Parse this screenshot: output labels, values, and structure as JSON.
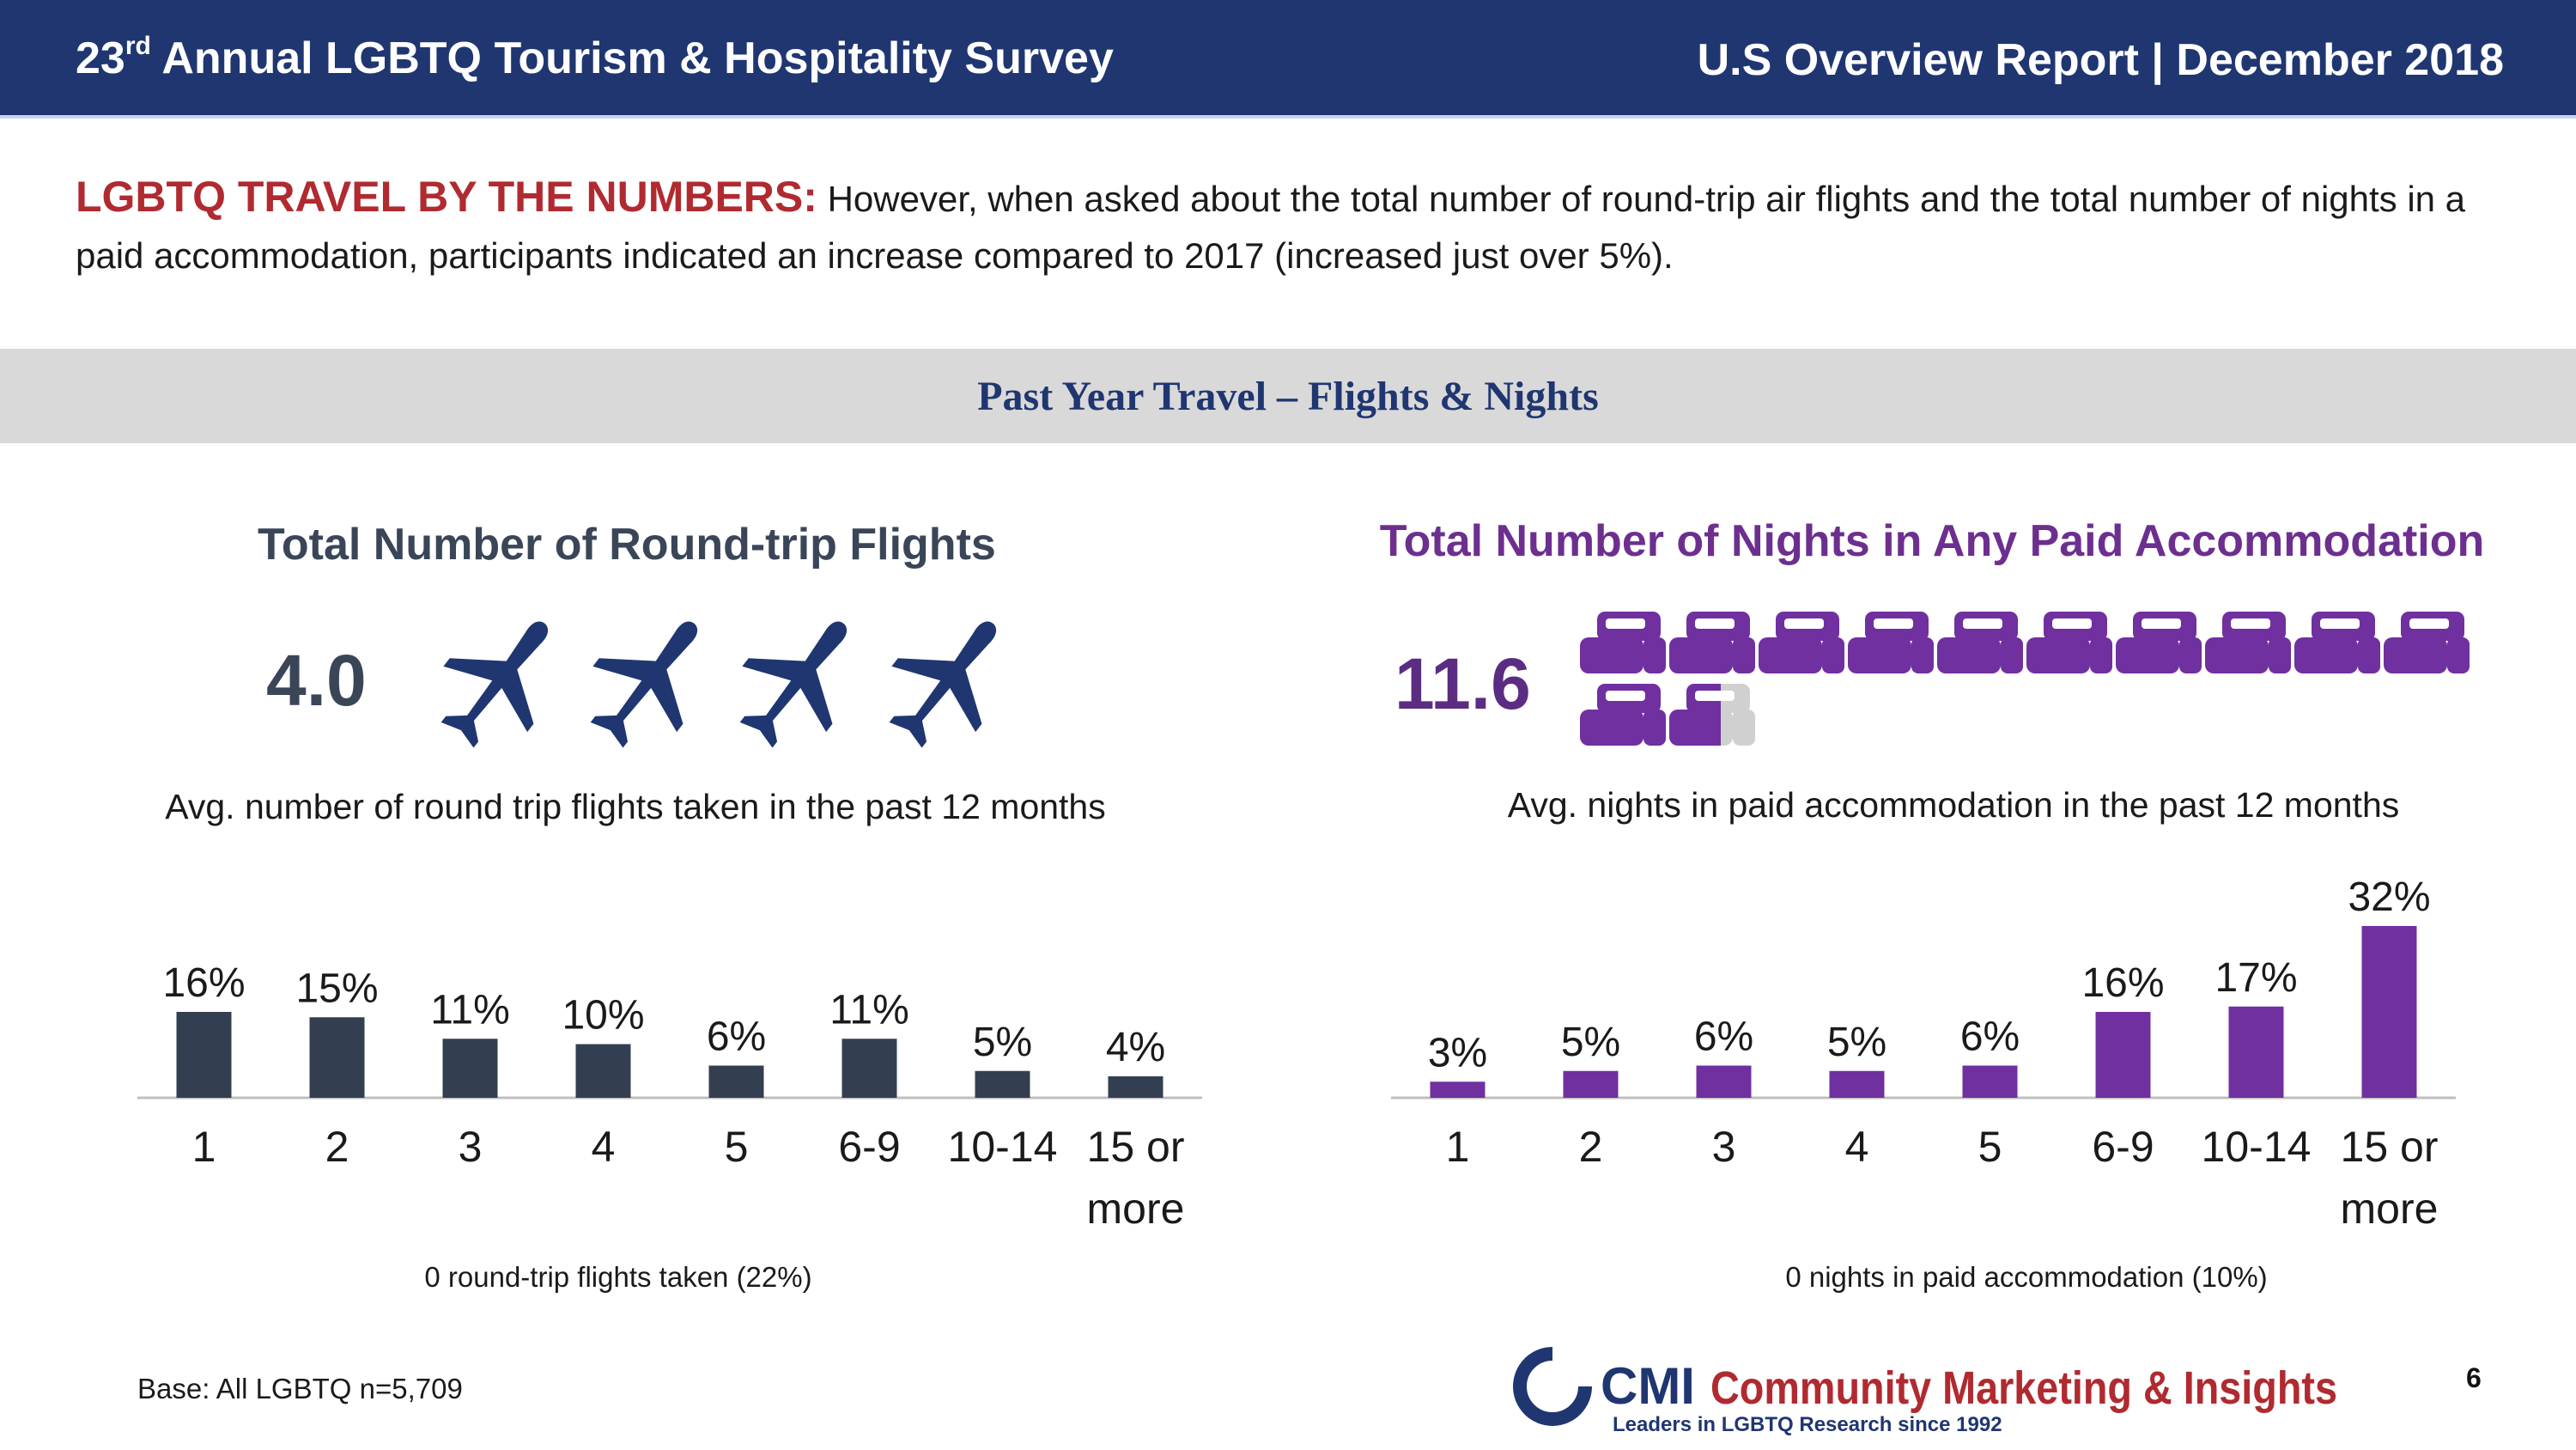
{
  "header": {
    "title_prefix": "23",
    "title_sup": "rd",
    "title_rest": " Annual LGBTQ Tourism & Hospitality Survey",
    "right": "U.S Overview Report | December 2018"
  },
  "intro": {
    "lead": "LGBTQ TRAVEL BY THE NUMBERS:",
    "text": " However, when asked about the total number of round-trip air flights and the total number of nights in a paid accommodation, participants indicated an increase compared to 2017 (increased just over 5%)."
  },
  "section_title": "Past Year Travel – Flights & Nights",
  "flights": {
    "title": "Total Number of Round-trip Flights",
    "average": "4.0",
    "icon": "airplane-icon",
    "caption": "Avg. number of round trip flights taken in the past 12 months",
    "note": "0 round-trip flights taken (22%)"
  },
  "nights": {
    "title": "Total Number of Nights in Any Paid Accommodation",
    "average": "11.6",
    "icon": "bed-icon",
    "caption": "Avg. nights in paid accommodation in the past 12 months",
    "note": "0 nights in paid accommodation (10%)"
  },
  "chart_data": [
    {
      "type": "bar",
      "title": "Total Number of Round-trip Flights",
      "categories": [
        "1",
        "2",
        "3",
        "4",
        "5",
        "6-9",
        "10-14",
        "15 or more"
      ],
      "values": [
        16,
        15,
        11,
        10,
        6,
        11,
        5,
        4
      ],
      "value_labels": [
        "16%",
        "15%",
        "11%",
        "10%",
        "6%",
        "11%",
        "5%",
        "4%"
      ],
      "unit": "%",
      "color": "#333f50",
      "ylim": [
        0,
        32
      ],
      "grid": false
    },
    {
      "type": "bar",
      "title": "Total Number of Nights in Any Paid Accommodation",
      "categories": [
        "1",
        "2",
        "3",
        "4",
        "5",
        "6-9",
        "10-14",
        "15 or more"
      ],
      "values": [
        3,
        5,
        6,
        5,
        6,
        16,
        17,
        32
      ],
      "value_labels": [
        "3%",
        "5%",
        "6%",
        "5%",
        "6%",
        "16%",
        "17%",
        "32%"
      ],
      "unit": "%",
      "color": "#7030a0",
      "ylim": [
        0,
        32
      ],
      "grid": false
    }
  ],
  "footer": {
    "base": "Base: All LGBTQ n=5,709",
    "logo_abbr": "CMI",
    "logo_name": "Community Marketing & Insights",
    "logo_tagline": "Leaders in LGBTQ Research since 1992",
    "page": "6"
  },
  "colors": {
    "header_bg": "#1f3671",
    "accent_red": "#b02a30",
    "flights_bar": "#333f50",
    "nights_bar": "#7030a0"
  }
}
